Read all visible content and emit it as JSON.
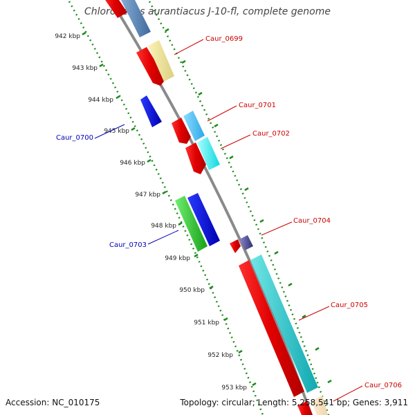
{
  "title": "Chloroflexus aurantiacus J-10-fl, complete genome",
  "footer": {
    "accession": "Accession: NC_010175",
    "summary": "Topology: circular; Length: 5,258,541 bp; Genes: 3,911"
  },
  "colors": {
    "backbone": "#8a8a8a",
    "ticks": "#1f8a1f",
    "forward_label": "#cc0000",
    "reverse_label": "#0000bb"
  },
  "ticks": [
    {
      "label": "942 kbp"
    },
    {
      "label": "943 kbp"
    },
    {
      "label": "944 kbp"
    },
    {
      "label": "945 kbp"
    },
    {
      "label": "946 kbp"
    },
    {
      "label": "947 kbp"
    },
    {
      "label": "948 kbp"
    },
    {
      "label": "949 kbp"
    },
    {
      "label": "950 kbp"
    },
    {
      "label": "951 kbp"
    },
    {
      "label": "952 kbp"
    },
    {
      "label": "953 kbp"
    }
  ],
  "gene_labels": [
    {
      "text": "Caur_0699",
      "strand": "forward"
    },
    {
      "text": "Caur_0700",
      "strand": "reverse"
    },
    {
      "text": "Caur_0701",
      "strand": "forward"
    },
    {
      "text": "Caur_0702",
      "strand": "forward"
    },
    {
      "text": "Caur_0703",
      "strand": "reverse"
    },
    {
      "text": "Caur_0704",
      "strand": "forward"
    },
    {
      "text": "Caur_0705",
      "strand": "forward"
    },
    {
      "text": "Caur_0706",
      "strand": "forward"
    }
  ]
}
